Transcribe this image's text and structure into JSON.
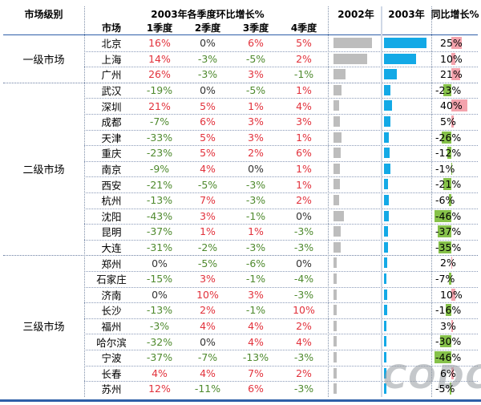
{
  "header": {
    "level_col": "市场级别",
    "main_title": "2003年各季度环比增长%",
    "market_col": "市场",
    "quarters": [
      "1季度",
      "2季度",
      "3季度",
      "4季度"
    ],
    "col_2002": "2002年",
    "col_2003": "2003年",
    "col_growth": "同比增长%"
  },
  "groups": [
    {
      "label": "一级市场",
      "start": 0,
      "count": 3
    },
    {
      "label": "二级市场",
      "start": 3,
      "count": 11
    },
    {
      "label": "三级市场",
      "start": 14,
      "count": 9
    }
  ],
  "rows": [
    {
      "city": "北京",
      "q": [
        "16%",
        "0%",
        "6%",
        "5%"
      ],
      "v2002": 0.88,
      "v2003": 0.98,
      "growth": "25%",
      "gv": 25
    },
    {
      "city": "上海",
      "q": [
        "14%",
        "-3%",
        "-5%",
        "2%"
      ],
      "v2002": 0.78,
      "v2003": 0.74,
      "growth": "10%",
      "gv": 10
    },
    {
      "city": "广州",
      "q": [
        "26%",
        "-3%",
        "3%",
        "-1%"
      ],
      "v2002": 0.28,
      "v2003": 0.3,
      "growth": "21%",
      "gv": 21
    },
    {
      "city": "武汉",
      "q": [
        "-19%",
        "0%",
        "-5%",
        "1%"
      ],
      "v2002": 0.18,
      "v2003": 0.15,
      "growth": "-23%",
      "gv": -23
    },
    {
      "city": "深圳",
      "q": [
        "21%",
        "5%",
        "1%",
        "4%"
      ],
      "v2002": 0.13,
      "v2003": 0.18,
      "growth": "40%",
      "gv": 40
    },
    {
      "city": "成都",
      "q": [
        "-7%",
        "6%",
        "3%",
        "3%"
      ],
      "v2002": 0.15,
      "v2003": 0.14,
      "growth": "5%",
      "gv": 5
    },
    {
      "city": "天津",
      "q": [
        "-33%",
        "5%",
        "3%",
        "1%"
      ],
      "v2002": 0.19,
      "v2003": 0.12,
      "growth": "-26%",
      "gv": -26
    },
    {
      "city": "重庆",
      "q": [
        "-23%",
        "5%",
        "2%",
        "6%"
      ],
      "v2002": 0.16,
      "v2003": 0.13,
      "growth": "-12%",
      "gv": -12
    },
    {
      "city": "南京",
      "q": [
        "-9%",
        "4%",
        "0%",
        "1%"
      ],
      "v2002": 0.15,
      "v2003": 0.14,
      "growth": "-1%",
      "gv": -1
    },
    {
      "city": "西安",
      "q": [
        "-21%",
        "-5%",
        "-3%",
        "1%"
      ],
      "v2002": 0.14,
      "v2003": 0.1,
      "growth": "-21%",
      "gv": -21
    },
    {
      "city": "杭州",
      "q": [
        "-13%",
        "7%",
        "-3%",
        "2%"
      ],
      "v2002": 0.13,
      "v2003": 0.12,
      "growth": "-6%",
      "gv": -6
    },
    {
      "city": "沈阳",
      "q": [
        "-43%",
        "3%",
        "-1%",
        "0%"
      ],
      "v2002": 0.24,
      "v2003": 0.12,
      "growth": "-46%",
      "gv": -46
    },
    {
      "city": "昆明",
      "q": [
        "-37%",
        "1%",
        "1%",
        "-3%"
      ],
      "v2002": 0.17,
      "v2003": 0.1,
      "growth": "-37%",
      "gv": -37
    },
    {
      "city": "大连",
      "q": [
        "-31%",
        "-2%",
        "-3%",
        "-3%"
      ],
      "v2002": 0.16,
      "v2003": 0.1,
      "growth": "-35%",
      "gv": -35
    },
    {
      "city": "郑州",
      "q": [
        "0%",
        "-5%",
        "-6%",
        "0%"
      ],
      "v2002": 0.07,
      "v2003": 0.07,
      "growth": "2%",
      "gv": 2
    },
    {
      "city": "石家庄",
      "q": [
        "-15%",
        "3%",
        "-1%",
        "-4%"
      ],
      "v2002": 0.07,
      "v2003": 0.06,
      "growth": "-7%",
      "gv": -7
    },
    {
      "city": "济南",
      "q": [
        "0%",
        "10%",
        "3%",
        "-3%"
      ],
      "v2002": 0.07,
      "v2003": 0.07,
      "growth": "10%",
      "gv": 10
    },
    {
      "city": "长沙",
      "q": [
        "-13%",
        "2%",
        "-1%",
        "10%"
      ],
      "v2002": 0.08,
      "v2003": 0.07,
      "growth": "-16%",
      "gv": -16
    },
    {
      "city": "福州",
      "q": [
        "-3%",
        "4%",
        "4%",
        "2%"
      ],
      "v2002": 0.06,
      "v2003": 0.06,
      "growth": "3%",
      "gv": 3
    },
    {
      "city": "哈尔滨",
      "q": [
        "-32%",
        "0%",
        "4%",
        "4%"
      ],
      "v2002": 0.08,
      "v2003": 0.05,
      "growth": "-30%",
      "gv": -30
    },
    {
      "city": "宁波",
      "q": [
        "-37%",
        "-7%",
        "-13%",
        "-3%"
      ],
      "v2002": 0.07,
      "v2003": 0.04,
      "growth": "-46%",
      "gv": -46
    },
    {
      "city": "长春",
      "q": [
        "4%",
        "4%",
        "7%",
        "2%"
      ],
      "v2002": 0.05,
      "v2003": 0.05,
      "growth": "6%",
      "gv": 6
    },
    {
      "city": "苏州",
      "q": [
        "12%",
        "-11%",
        "6%",
        "-3%"
      ],
      "v2002": 0.05,
      "v2003": 0.05,
      "growth": "-5%",
      "gv": -5
    }
  ],
  "watermark": "CODC",
  "colors": {
    "positive": "#e2323c",
    "negative": "#4f8a2e",
    "bar2002": "#bdbdbd",
    "bar2003": "#13a9e6",
    "growth_pos": "#f4a3ad",
    "growth_neg": "#86c24a",
    "rule": "#2e5fa8"
  }
}
